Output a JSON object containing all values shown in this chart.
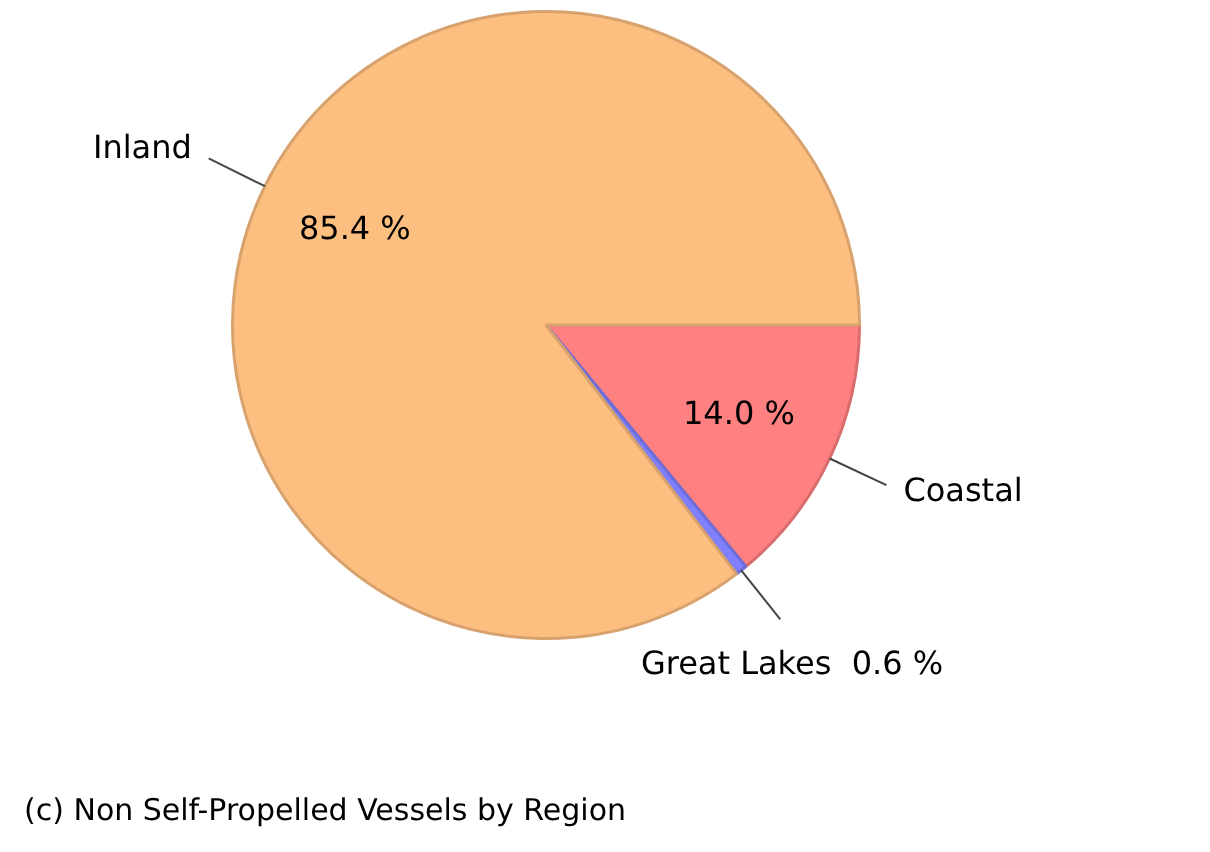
{
  "chart_data": {
    "type": "pie",
    "categories": [
      "Coastal",
      "Great Lakes",
      "Inland"
    ],
    "values": [
      14.0,
      0.6,
      85.4
    ],
    "colors": [
      "#ff8080",
      "#8080ff",
      "#fdbf80"
    ],
    "value_labels": [
      "14.0 %",
      "0.6 %",
      "85.4 %"
    ],
    "annotations": [
      "(c) Non Self-Propelled Vessels by Region"
    ],
    "legend": false
  }
}
